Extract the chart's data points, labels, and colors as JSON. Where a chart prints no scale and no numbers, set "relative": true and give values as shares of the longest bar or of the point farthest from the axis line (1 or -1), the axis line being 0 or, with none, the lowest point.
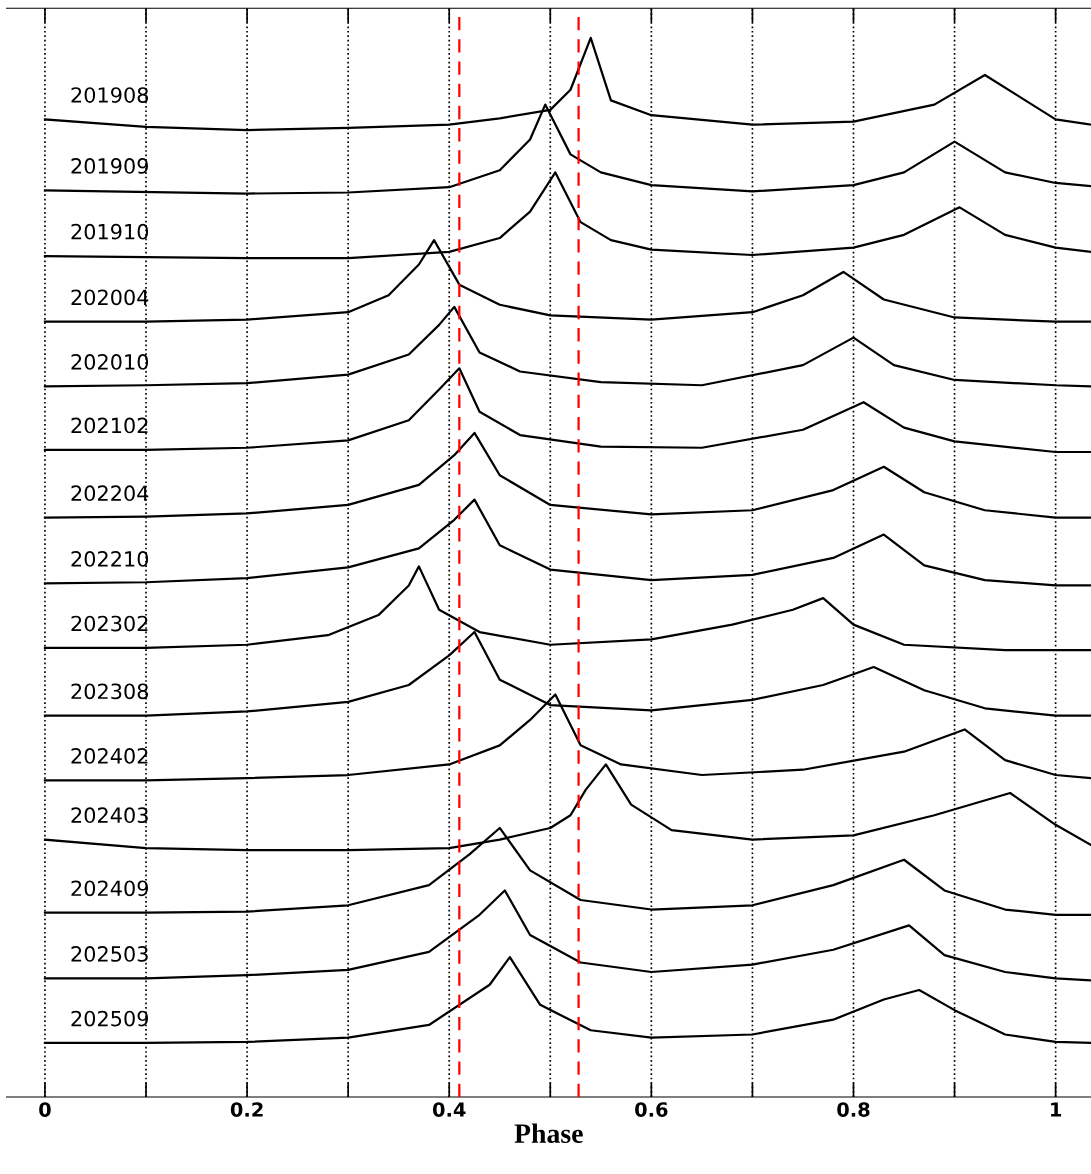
{
  "chart_data": {
    "type": "line",
    "relative": true,
    "xlabel": "Phase",
    "xlim": [
      -0.038,
      1.035
    ],
    "xticks": [
      0,
      {
        "value": 0.1,
        "label": null
      },
      0.2,
      {
        "value": 0.3,
        "label": null
      },
      0.4,
      {
        "value": 0.5,
        "label": null
      },
      0.6,
      {
        "value": 0.7,
        "label": null
      },
      0.8,
      {
        "value": 0.9,
        "label": null
      },
      1
    ],
    "grid": "x",
    "legend": false,
    "marker": "none",
    "line_style": "solid",
    "ref_lines": [
      {
        "axis": "x",
        "value": 0.41,
        "color": "#ff0000",
        "line_style": "dashed"
      },
      {
        "axis": "x",
        "value": 0.528,
        "color": "#ff0000",
        "line_style": "dashed"
      }
    ],
    "series": [
      {
        "name": "201908",
        "color": "#000000",
        "x": [
          0,
          0.1,
          0.2,
          0.3,
          0.4,
          0.45,
          0.5,
          0.52,
          0.54,
          0.56,
          0.6,
          0.7,
          0.8,
          0.88,
          0.93,
          0.97,
          1.0,
          1.035
        ],
        "values": [
          0.923,
          0.916,
          0.913,
          0.915,
          0.918,
          0.924,
          0.932,
          0.951,
          1.0,
          0.941,
          0.927,
          0.918,
          0.921,
          0.937,
          0.965,
          0.941,
          0.923,
          0.918
        ]
      },
      {
        "name": "201909",
        "color": "#000000",
        "x": [
          0,
          0.2,
          0.3,
          0.4,
          0.45,
          0.48,
          0.495,
          0.52,
          0.55,
          0.6,
          0.7,
          0.8,
          0.85,
          0.9,
          0.95,
          1.0,
          1.035
        ],
        "values": [
          0.856,
          0.853,
          0.854,
          0.859,
          0.875,
          0.904,
          0.937,
          0.89,
          0.873,
          0.861,
          0.855,
          0.861,
          0.873,
          0.902,
          0.873,
          0.863,
          0.86
        ]
      },
      {
        "name": "201910",
        "color": "#000000",
        "x": [
          0,
          0.2,
          0.3,
          0.4,
          0.45,
          0.48,
          0.505,
          0.53,
          0.56,
          0.6,
          0.7,
          0.8,
          0.85,
          0.905,
          0.95,
          1.0,
          1.035
        ],
        "values": [
          0.794,
          0.792,
          0.792,
          0.798,
          0.811,
          0.836,
          0.873,
          0.826,
          0.809,
          0.8,
          0.795,
          0.802,
          0.814,
          0.84,
          0.814,
          0.802,
          0.798
        ]
      },
      {
        "name": "202004",
        "color": "#000000",
        "x": [
          0,
          0.1,
          0.2,
          0.3,
          0.34,
          0.37,
          0.385,
          0.41,
          0.45,
          0.5,
          0.6,
          0.7,
          0.75,
          0.79,
          0.83,
          0.9,
          1.0,
          1.035
        ],
        "values": [
          0.732,
          0.732,
          0.734,
          0.741,
          0.757,
          0.786,
          0.809,
          0.767,
          0.748,
          0.738,
          0.734,
          0.741,
          0.757,
          0.779,
          0.753,
          0.736,
          0.732,
          0.732
        ]
      },
      {
        "name": "202010",
        "color": "#000000",
        "x": [
          0,
          0.1,
          0.2,
          0.3,
          0.36,
          0.39,
          0.405,
          0.43,
          0.47,
          0.55,
          0.65,
          0.75,
          0.8,
          0.84,
          0.9,
          1.0,
          1.035
        ],
        "values": [
          0.671,
          0.672,
          0.674,
          0.682,
          0.701,
          0.729,
          0.746,
          0.703,
          0.685,
          0.675,
          0.672,
          0.691,
          0.717,
          0.691,
          0.677,
          0.672,
          0.671
        ]
      },
      {
        "name": "202102",
        "color": "#000000",
        "x": [
          0,
          0.1,
          0.2,
          0.3,
          0.36,
          0.39,
          0.41,
          0.43,
          0.47,
          0.55,
          0.65,
          0.75,
          0.81,
          0.85,
          0.9,
          1.0,
          1.035
        ],
        "values": [
          0.611,
          0.611,
          0.613,
          0.62,
          0.639,
          0.668,
          0.688,
          0.647,
          0.625,
          0.614,
          0.613,
          0.63,
          0.656,
          0.632,
          0.619,
          0.609,
          0.609
        ]
      },
      {
        "name": "202204",
        "color": "#000000",
        "x": [
          0,
          0.1,
          0.2,
          0.3,
          0.37,
          0.405,
          0.425,
          0.45,
          0.5,
          0.6,
          0.7,
          0.78,
          0.83,
          0.87,
          0.93,
          1.0,
          1.035
        ],
        "values": [
          0.547,
          0.548,
          0.551,
          0.559,
          0.578,
          0.606,
          0.627,
          0.587,
          0.559,
          0.55,
          0.554,
          0.573,
          0.595,
          0.571,
          0.554,
          0.547,
          0.547
        ]
      },
      {
        "name": "202210",
        "color": "#000000",
        "x": [
          0,
          0.1,
          0.2,
          0.3,
          0.37,
          0.405,
          0.425,
          0.45,
          0.5,
          0.6,
          0.7,
          0.78,
          0.83,
          0.87,
          0.93,
          1.0,
          1.035
        ],
        "values": [
          0.485,
          0.486,
          0.49,
          0.5,
          0.518,
          0.545,
          0.564,
          0.521,
          0.498,
          0.488,
          0.493,
          0.509,
          0.531,
          0.502,
          0.488,
          0.483,
          0.483
        ]
      },
      {
        "name": "202302",
        "color": "#000000",
        "x": [
          0,
          0.1,
          0.2,
          0.28,
          0.33,
          0.36,
          0.37,
          0.39,
          0.43,
          0.5,
          0.6,
          0.68,
          0.74,
          0.77,
          0.8,
          0.85,
          0.95,
          1.035
        ],
        "values": [
          0.424,
          0.424,
          0.427,
          0.436,
          0.455,
          0.483,
          0.501,
          0.46,
          0.439,
          0.427,
          0.432,
          0.446,
          0.46,
          0.471,
          0.446,
          0.427,
          0.422,
          0.422
        ]
      },
      {
        "name": "202308",
        "color": "#000000",
        "x": [
          0,
          0.1,
          0.2,
          0.3,
          0.36,
          0.4,
          0.425,
          0.45,
          0.5,
          0.6,
          0.7,
          0.77,
          0.82,
          0.87,
          0.93,
          1.0,
          1.035
        ],
        "values": [
          0.36,
          0.36,
          0.364,
          0.373,
          0.389,
          0.417,
          0.439,
          0.394,
          0.37,
          0.365,
          0.375,
          0.389,
          0.406,
          0.384,
          0.367,
          0.36,
          0.36
        ]
      },
      {
        "name": "202402",
        "color": "#000000",
        "x": [
          0,
          0.1,
          0.2,
          0.3,
          0.4,
          0.45,
          0.48,
          0.505,
          0.53,
          0.57,
          0.65,
          0.75,
          0.85,
          0.91,
          0.95,
          1.0,
          1.035
        ],
        "values": [
          0.299,
          0.299,
          0.301,
          0.304,
          0.314,
          0.332,
          0.356,
          0.38,
          0.332,
          0.314,
          0.304,
          0.309,
          0.326,
          0.347,
          0.318,
          0.304,
          0.301
        ]
      },
      {
        "name": "202403",
        "color": "#000000",
        "x": [
          0,
          0.1,
          0.2,
          0.3,
          0.4,
          0.45,
          0.5,
          0.52,
          0.535,
          0.555,
          0.58,
          0.62,
          0.7,
          0.8,
          0.88,
          0.955,
          1.0,
          1.035
        ],
        "values": [
          0.243,
          0.235,
          0.233,
          0.233,
          0.235,
          0.243,
          0.254,
          0.266,
          0.29,
          0.314,
          0.276,
          0.252,
          0.243,
          0.247,
          0.266,
          0.287,
          0.257,
          0.238
        ]
      },
      {
        "name": "202409",
        "color": "#000000",
        "x": [
          0,
          0.1,
          0.2,
          0.3,
          0.38,
          0.42,
          0.45,
          0.48,
          0.53,
          0.6,
          0.7,
          0.78,
          0.85,
          0.89,
          0.95,
          1.0,
          1.035
        ],
        "values": [
          0.174,
          0.174,
          0.175,
          0.181,
          0.2,
          0.229,
          0.254,
          0.214,
          0.186,
          0.177,
          0.181,
          0.2,
          0.224,
          0.195,
          0.177,
          0.172,
          0.172
        ]
      },
      {
        "name": "202503",
        "color": "#000000",
        "x": [
          0,
          0.1,
          0.2,
          0.3,
          0.38,
          0.43,
          0.455,
          0.48,
          0.53,
          0.6,
          0.7,
          0.78,
          0.855,
          0.89,
          0.95,
          1.0,
          1.035
        ],
        "values": [
          0.112,
          0.112,
          0.115,
          0.12,
          0.137,
          0.172,
          0.195,
          0.153,
          0.127,
          0.118,
          0.125,
          0.139,
          0.162,
          0.134,
          0.118,
          0.112,
          0.11
        ]
      },
      {
        "name": "202509",
        "color": "#000000",
        "x": [
          0,
          0.1,
          0.2,
          0.3,
          0.38,
          0.44,
          0.46,
          0.49,
          0.54,
          0.6,
          0.7,
          0.78,
          0.83,
          0.865,
          0.9,
          0.95,
          1.0,
          1.035
        ],
        "values": [
          0.051,
          0.051,
          0.052,
          0.056,
          0.068,
          0.106,
          0.132,
          0.087,
          0.063,
          0.056,
          0.059,
          0.073,
          0.092,
          0.101,
          0.082,
          0.059,
          0.052,
          0.051
        ]
      }
    ]
  }
}
